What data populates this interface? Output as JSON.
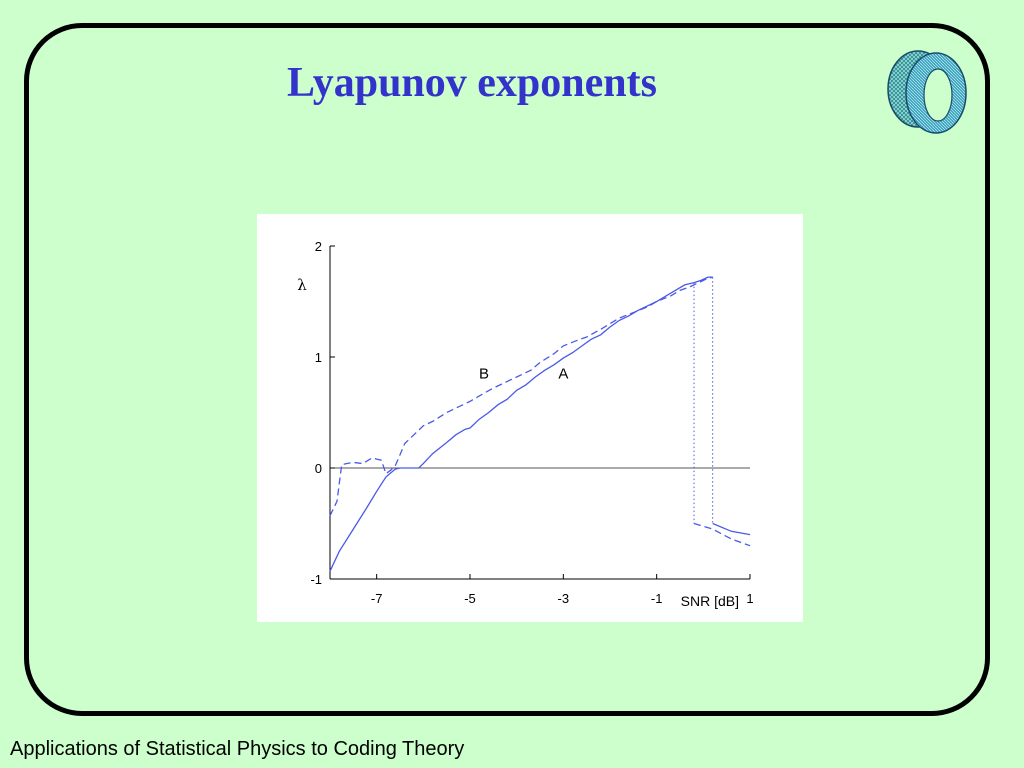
{
  "slide": {
    "title": "Lyapunov exponents",
    "footer": "Applications of Statistical Physics to Coding Theory",
    "colors": {
      "background": "#ccffcc",
      "title": "#3333cc",
      "curve": "#4a5ae8",
      "frame": "#000000"
    },
    "logo_icon": "torus-icon"
  },
  "chart_data": {
    "type": "line",
    "xlabel": "SNR [dB]",
    "ylabel": "λ",
    "xlim": [
      -8,
      1
    ],
    "ylim": [
      -1,
      2
    ],
    "xticks": [
      -7,
      -5,
      -3,
      -1,
      1
    ],
    "yticks": [
      -1,
      0,
      1,
      2
    ],
    "grid": false,
    "zero_line": true,
    "series": [
      {
        "name": "A",
        "style": "solid",
        "x": [
          -8.0,
          -7.8,
          -7.5,
          -7.2,
          -7.0,
          -6.8,
          -6.6,
          -6.5,
          -6.3,
          -6.1,
          -6.0,
          -5.8,
          -5.5,
          -5.3,
          -5.1,
          -5.0,
          -4.8,
          -4.6,
          -4.4,
          -4.2,
          -4.0,
          -3.8,
          -3.6,
          -3.4,
          -3.2,
          -3.0,
          -2.8,
          -2.6,
          -2.4,
          -2.2,
          -2.0,
          -1.8,
          -1.6,
          -1.4,
          -1.2,
          -1.0,
          -0.8,
          -0.6,
          -0.4,
          -0.2,
          -0.05,
          0.1,
          0.2
        ],
        "y": [
          -0.93,
          -0.75,
          -0.55,
          -0.35,
          -0.21,
          -0.08,
          -0.01,
          0.0,
          0.0,
          0.0,
          0.04,
          0.13,
          0.23,
          0.3,
          0.35,
          0.36,
          0.44,
          0.5,
          0.57,
          0.62,
          0.7,
          0.75,
          0.82,
          0.88,
          0.93,
          0.99,
          1.04,
          1.1,
          1.16,
          1.2,
          1.27,
          1.33,
          1.37,
          1.42,
          1.46,
          1.5,
          1.55,
          1.6,
          1.65,
          1.67,
          1.69,
          1.72,
          1.72
        ]
      },
      {
        "name": "B",
        "style": "dashed",
        "x": [
          -8.0,
          -7.85,
          -7.75,
          -7.65,
          -7.5,
          -7.3,
          -7.1,
          -7.0,
          -6.9,
          -6.8,
          -6.7,
          -6.6,
          -6.5,
          -6.4,
          -6.2,
          -6.0,
          -5.8,
          -5.5,
          -5.2,
          -5.0,
          -4.8,
          -4.5,
          -4.2,
          -4.0,
          -3.7,
          -3.5,
          -3.2,
          -3.0,
          -2.7,
          -2.5,
          -2.2,
          -2.0,
          -1.8,
          -1.5,
          -1.2,
          -1.0,
          -0.7,
          -0.5,
          -0.3,
          -0.1,
          0.05,
          0.2
        ],
        "y": [
          -0.43,
          -0.3,
          0.03,
          0.04,
          0.05,
          0.04,
          0.09,
          0.08,
          0.07,
          -0.05,
          -0.02,
          0.02,
          0.12,
          0.22,
          0.3,
          0.38,
          0.42,
          0.5,
          0.56,
          0.6,
          0.65,
          0.72,
          0.78,
          0.82,
          0.88,
          0.95,
          1.03,
          1.1,
          1.15,
          1.18,
          1.25,
          1.3,
          1.35,
          1.4,
          1.45,
          1.5,
          1.55,
          1.6,
          1.63,
          1.67,
          1.7,
          1.72
        ]
      }
    ],
    "drops": [
      {
        "x": 0.2,
        "from": 1.72,
        "to": -0.5,
        "style": "dotted",
        "tail_x": [
          0.2,
          0.6,
          1.0
        ],
        "tail_y": [
          -0.5,
          -0.57,
          -0.6
        ]
      },
      {
        "x": -0.2,
        "from": 1.67,
        "to": -0.5,
        "style": "dotted",
        "tail_x": [
          -0.2,
          0.2,
          0.6,
          1.0
        ],
        "tail_y": [
          -0.5,
          -0.55,
          -0.64,
          -0.7
        ]
      }
    ],
    "annotations": [
      {
        "text": "A",
        "x": -3.0,
        "y": 0.85
      },
      {
        "text": "B",
        "x": -4.7,
        "y": 0.85
      }
    ]
  }
}
